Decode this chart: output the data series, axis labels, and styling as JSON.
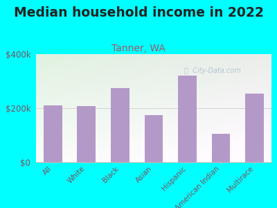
{
  "title": "Median household income in 2022",
  "subtitle": "Tanner, WA",
  "categories": [
    "All",
    "White",
    "Black",
    "Asian",
    "Hispanic",
    "American Indian",
    "Multirace"
  ],
  "values": [
    210000,
    207000,
    275000,
    175000,
    320000,
    105000,
    255000
  ],
  "bar_color": "#b399c8",
  "ylim": [
    0,
    400000
  ],
  "ytick_labels": [
    "$0",
    "$200k",
    "$400k"
  ],
  "ytick_vals": [
    0,
    200000,
    400000
  ],
  "background_color": "#00FFFF",
  "title_fontsize": 13.5,
  "subtitle_fontsize": 10,
  "subtitle_color": "#a05868",
  "tick_color": "#7a5060",
  "watermark": "City-Data.com",
  "watermark_color": "#aabbcc"
}
